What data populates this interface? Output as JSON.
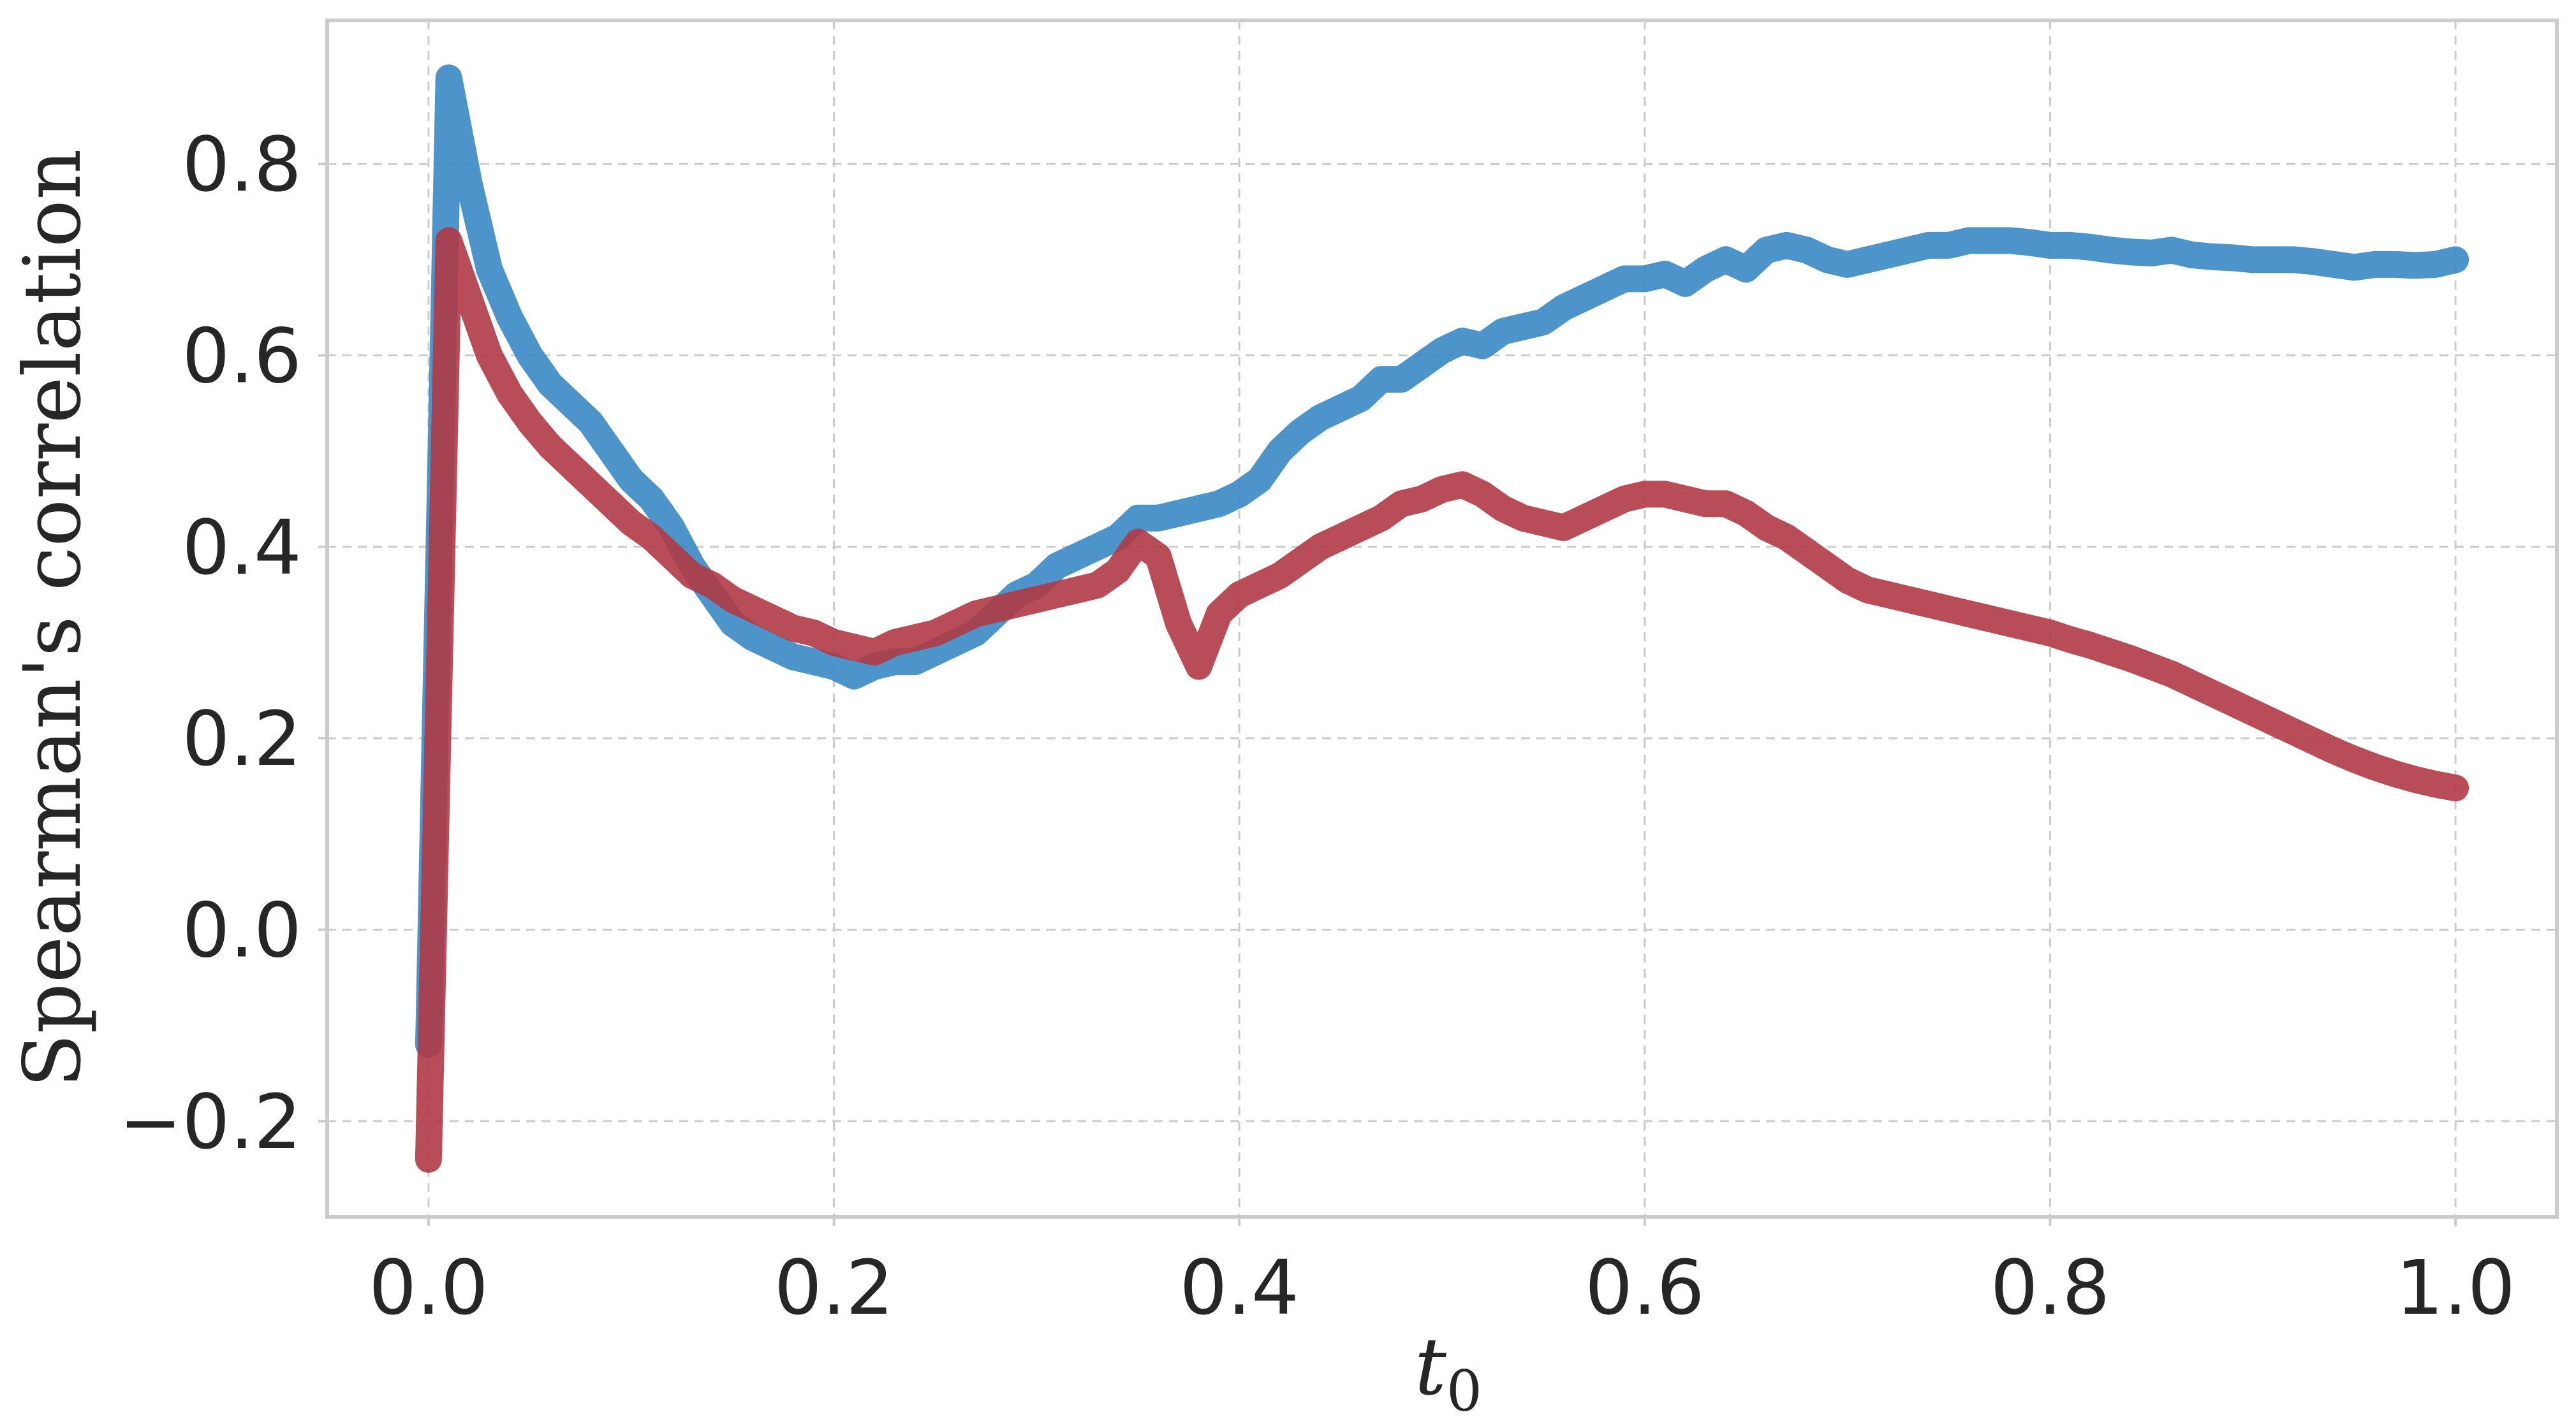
{
  "chart_data": {
    "type": "line",
    "title": "",
    "xlabel": "t",
    "xlabel_subscript": "0",
    "ylabel": "Spearman's correlation",
    "xlim": [
      -0.05,
      1.05
    ],
    "ylim": [
      -0.3,
      0.95
    ],
    "xticks": [
      0.0,
      0.2,
      0.4,
      0.6,
      0.8,
      1.0
    ],
    "xtick_labels": [
      "0.0",
      "0.2",
      "0.4",
      "0.6",
      "0.8",
      "1.0"
    ],
    "yticks": [
      -0.2,
      0.0,
      0.2,
      0.4,
      0.6,
      0.8
    ],
    "ytick_labels": [
      "−0.2",
      "0.0",
      "0.2",
      "0.4",
      "0.6",
      "0.8"
    ],
    "grid": true,
    "legend": "none",
    "series": [
      {
        "color": "#3a88c5",
        "x": [
          0.0,
          0.01,
          0.02,
          0.03,
          0.04,
          0.05,
          0.06,
          0.07,
          0.08,
          0.09,
          0.1,
          0.11,
          0.12,
          0.13,
          0.14,
          0.15,
          0.16,
          0.17,
          0.18,
          0.19,
          0.2,
          0.21,
          0.22,
          0.23,
          0.24,
          0.25,
          0.26,
          0.27,
          0.28,
          0.29,
          0.3,
          0.31,
          0.32,
          0.33,
          0.34,
          0.35,
          0.36,
          0.37,
          0.38,
          0.39,
          0.4,
          0.41,
          0.42,
          0.43,
          0.44,
          0.45,
          0.46,
          0.47,
          0.48,
          0.49,
          0.5,
          0.51,
          0.52,
          0.53,
          0.54,
          0.55,
          0.56,
          0.57,
          0.58,
          0.59,
          0.6,
          0.61,
          0.62,
          0.63,
          0.64,
          0.65,
          0.66,
          0.67,
          0.68,
          0.69,
          0.7,
          0.71,
          0.72,
          0.73,
          0.74,
          0.75,
          0.76,
          0.77,
          0.78,
          0.79,
          0.8,
          0.81,
          0.82,
          0.83,
          0.84,
          0.85,
          0.86,
          0.87,
          0.88,
          0.89,
          0.9,
          0.91,
          0.92,
          0.93,
          0.94,
          0.95,
          0.96,
          0.97,
          0.98,
          0.99,
          1.0
        ],
        "y": [
          -0.12,
          0.89,
          0.78,
          0.69,
          0.64,
          0.6,
          0.57,
          0.55,
          0.53,
          0.5,
          0.47,
          0.45,
          0.42,
          0.38,
          0.35,
          0.32,
          0.305,
          0.295,
          0.285,
          0.28,
          0.275,
          0.265,
          0.275,
          0.28,
          0.28,
          0.29,
          0.3,
          0.31,
          0.33,
          0.35,
          0.36,
          0.38,
          0.39,
          0.4,
          0.41,
          0.43,
          0.43,
          0.435,
          0.44,
          0.445,
          0.455,
          0.47,
          0.5,
          0.52,
          0.535,
          0.545,
          0.555,
          0.575,
          0.575,
          0.59,
          0.605,
          0.615,
          0.61,
          0.625,
          0.63,
          0.635,
          0.65,
          0.66,
          0.67,
          0.68,
          0.68,
          0.685,
          0.675,
          0.69,
          0.7,
          0.69,
          0.71,
          0.715,
          0.71,
          0.7,
          0.695,
          0.7,
          0.705,
          0.71,
          0.715,
          0.715,
          0.72,
          0.72,
          0.72,
          0.718,
          0.715,
          0.715,
          0.713,
          0.71,
          0.708,
          0.707,
          0.71,
          0.705,
          0.703,
          0.702,
          0.7,
          0.7,
          0.7,
          0.698,
          0.695,
          0.692,
          0.695,
          0.695,
          0.694,
          0.695,
          0.7
        ]
      },
      {
        "color": "#b03a45",
        "x": [
          0.0,
          0.01,
          0.02,
          0.03,
          0.04,
          0.05,
          0.06,
          0.07,
          0.08,
          0.09,
          0.1,
          0.11,
          0.12,
          0.13,
          0.14,
          0.15,
          0.16,
          0.17,
          0.18,
          0.19,
          0.2,
          0.21,
          0.22,
          0.23,
          0.24,
          0.25,
          0.26,
          0.27,
          0.28,
          0.29,
          0.3,
          0.31,
          0.32,
          0.33,
          0.34,
          0.35,
          0.36,
          0.37,
          0.38,
          0.39,
          0.4,
          0.41,
          0.42,
          0.43,
          0.44,
          0.45,
          0.46,
          0.47,
          0.48,
          0.49,
          0.5,
          0.51,
          0.52,
          0.53,
          0.54,
          0.55,
          0.56,
          0.57,
          0.58,
          0.59,
          0.6,
          0.61,
          0.62,
          0.63,
          0.64,
          0.65,
          0.66,
          0.67,
          0.68,
          0.69,
          0.7,
          0.71,
          0.72,
          0.73,
          0.74,
          0.75,
          0.76,
          0.77,
          0.78,
          0.79,
          0.8,
          0.81,
          0.82,
          0.83,
          0.84,
          0.85,
          0.86,
          0.87,
          0.88,
          0.89,
          0.9,
          0.91,
          0.92,
          0.93,
          0.94,
          0.95,
          0.96,
          0.97,
          0.98,
          0.99,
          1.0
        ],
        "y": [
          -0.24,
          0.72,
          0.66,
          0.6,
          0.56,
          0.53,
          0.505,
          0.485,
          0.465,
          0.445,
          0.425,
          0.41,
          0.39,
          0.37,
          0.36,
          0.345,
          0.335,
          0.325,
          0.315,
          0.31,
          0.3,
          0.295,
          0.29,
          0.3,
          0.305,
          0.31,
          0.32,
          0.33,
          0.335,
          0.34,
          0.345,
          0.35,
          0.355,
          0.36,
          0.375,
          0.405,
          0.39,
          0.32,
          0.275,
          0.33,
          0.35,
          0.36,
          0.37,
          0.385,
          0.4,
          0.41,
          0.42,
          0.43,
          0.445,
          0.45,
          0.46,
          0.465,
          0.455,
          0.44,
          0.43,
          0.425,
          0.42,
          0.43,
          0.44,
          0.45,
          0.455,
          0.455,
          0.45,
          0.445,
          0.445,
          0.435,
          0.42,
          0.41,
          0.395,
          0.38,
          0.365,
          0.355,
          0.35,
          0.345,
          0.34,
          0.335,
          0.33,
          0.325,
          0.32,
          0.315,
          0.31,
          0.303,
          0.297,
          0.29,
          0.283,
          0.275,
          0.267,
          0.257,
          0.247,
          0.237,
          0.227,
          0.217,
          0.207,
          0.197,
          0.187,
          0.178,
          0.17,
          0.163,
          0.157,
          0.152,
          0.148
        ]
      }
    ]
  }
}
